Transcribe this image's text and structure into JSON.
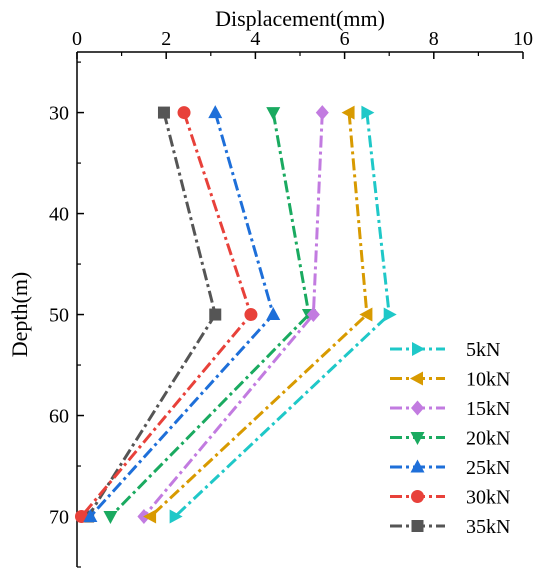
{
  "chart_data": {
    "type": "line",
    "xlabel": "Displacement(mm)",
    "ylabel": "Depth(m)",
    "xlim": [
      0,
      10
    ],
    "ylim": [
      75,
      24
    ],
    "x_ticks": [
      0,
      2,
      4,
      6,
      8,
      10
    ],
    "y_ticks": [
      30,
      40,
      50,
      60,
      70
    ],
    "x_axis_position": "top",
    "y_axis_inverted": true,
    "grid": false,
    "legend_position": "bottom-right",
    "line_style": "dash-dot",
    "series": [
      {
        "name": "5kN",
        "color": "#1FC8C8",
        "marker": "triangle-right",
        "points": [
          {
            "x": 6.5,
            "y": 30
          },
          {
            "x": 7.0,
            "y": 50
          },
          {
            "x": 2.2,
            "y": 70
          }
        ]
      },
      {
        "name": "10kN",
        "color": "#D89A00",
        "marker": "triangle-left",
        "points": [
          {
            "x": 6.1,
            "y": 30
          },
          {
            "x": 6.5,
            "y": 50
          },
          {
            "x": 1.65,
            "y": 70
          }
        ]
      },
      {
        "name": "15kN",
        "color": "#C27BE0",
        "marker": "diamond",
        "points": [
          {
            "x": 5.5,
            "y": 30
          },
          {
            "x": 5.3,
            "y": 50
          },
          {
            "x": 1.5,
            "y": 70
          }
        ]
      },
      {
        "name": "20kN",
        "color": "#1AAA60",
        "marker": "triangle-down",
        "points": [
          {
            "x": 4.4,
            "y": 30
          },
          {
            "x": 5.2,
            "y": 50
          },
          {
            "x": 0.75,
            "y": 70
          }
        ]
      },
      {
        "name": "25kN",
        "color": "#1E6FD9",
        "marker": "triangle-up",
        "points": [
          {
            "x": 3.1,
            "y": 30
          },
          {
            "x": 4.4,
            "y": 50
          },
          {
            "x": 0.3,
            "y": 70
          }
        ]
      },
      {
        "name": "30kN",
        "color": "#E8413A",
        "marker": "circle",
        "points": [
          {
            "x": 2.4,
            "y": 30
          },
          {
            "x": 3.9,
            "y": 50
          },
          {
            "x": 0.1,
            "y": 70
          }
        ]
      },
      {
        "name": "35kN",
        "color": "#555555",
        "marker": "square",
        "points": [
          {
            "x": 1.95,
            "y": 30
          },
          {
            "x": 3.1,
            "y": 50
          },
          {
            "x": 0.25,
            "y": 70
          }
        ]
      }
    ]
  }
}
